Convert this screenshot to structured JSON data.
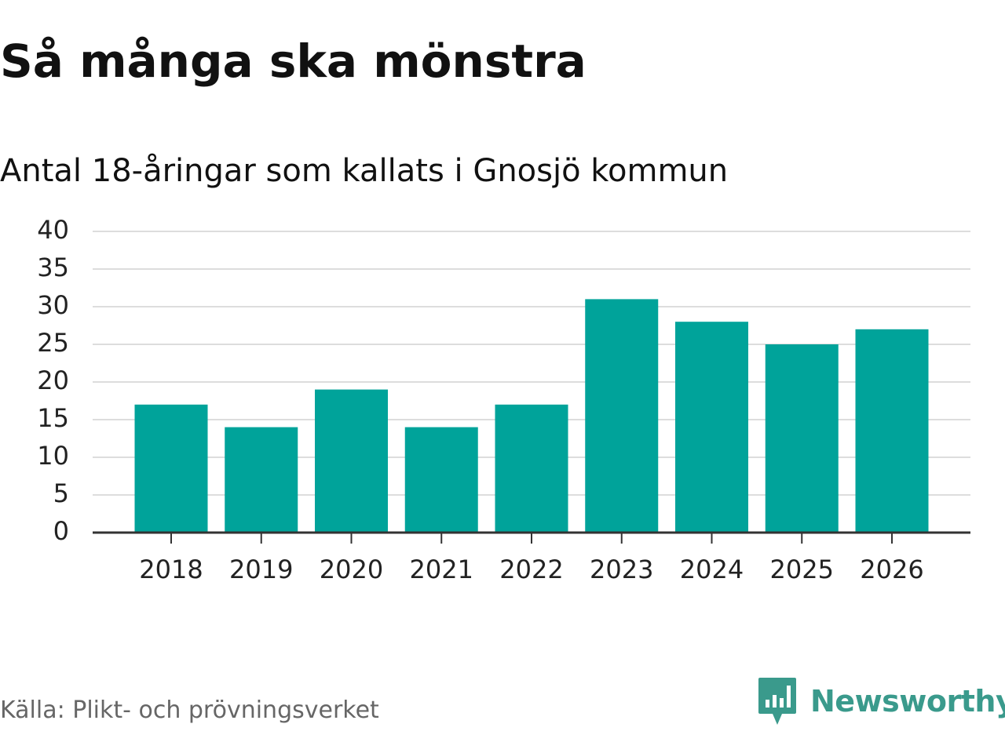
{
  "header": {
    "title": "Så många ska mönstra",
    "subtitle": "Antal 18-åringar som kallats i Gnosjö kommun"
  },
  "chart_data": {
    "type": "bar",
    "title": "Så många ska mönstra",
    "subtitle": "Antal 18-åringar som kallats i Gnosjö kommun",
    "xlabel": "",
    "ylabel": "",
    "categories": [
      "2018",
      "2019",
      "2020",
      "2021",
      "2022",
      "2023",
      "2024",
      "2025",
      "2026"
    ],
    "values": [
      17,
      14,
      19,
      14,
      17,
      31,
      28,
      25,
      27
    ],
    "ylim": [
      0,
      40
    ],
    "yticks": [
      0,
      5,
      10,
      15,
      20,
      25,
      30,
      35,
      40
    ],
    "grid": true,
    "bar_color": "#00a39a",
    "grid_color": "#dddddd",
    "axis_color": "#333333"
  },
  "footer": {
    "source": "Källa: Plikt- och prövningsverket",
    "brand_name": "Newsworthy",
    "brand_icon": "bar-chart-speech-bubble-icon",
    "brand_color": "#3a9a8c"
  }
}
